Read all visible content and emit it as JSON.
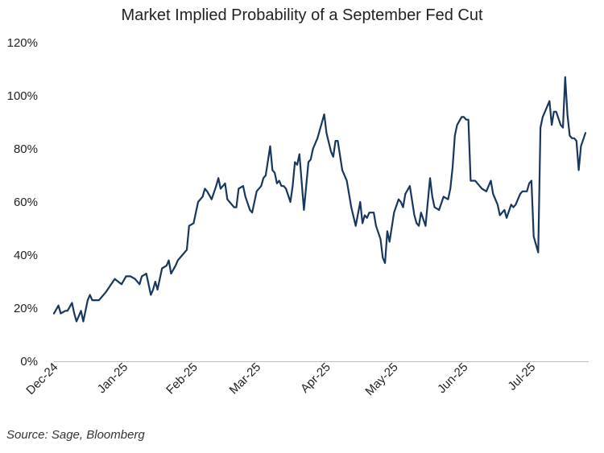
{
  "chart_data": {
    "type": "line",
    "title": "Market Implied Probability of a September Fed Cut",
    "xlabel": "",
    "ylabel": "",
    "ylim": [
      0,
      120
    ],
    "y_ticks": [
      "0%",
      "20%",
      "40%",
      "60%",
      "80%",
      "100%",
      "120%"
    ],
    "x_ticks": [
      "Dec-24",
      "Jan-25",
      "Feb-25",
      "Mar-25",
      "Apr-25",
      "May-25",
      "Jun-25",
      "Jul-25"
    ],
    "x_range": [
      "2024-12-01",
      "2025-07-25"
    ],
    "grid": false,
    "legend": "none",
    "line_color": "#17375e",
    "series": [
      {
        "x": [
          "2024-12-01",
          "2024-12-03",
          "2024-12-04",
          "2024-12-06",
          "2024-12-07",
          "2024-12-09",
          "2024-12-10",
          "2024-12-11",
          "2024-12-13",
          "2024-12-14",
          "2024-12-16",
          "2024-12-17",
          "2024-12-18",
          "2024-12-19",
          "2024-12-21",
          "2024-12-24",
          "2024-12-28",
          "2024-12-31",
          "2025-01-02",
          "2025-01-04",
          "2025-01-06",
          "2025-01-08",
          "2025-01-09",
          "2025-01-11",
          "2025-01-13",
          "2025-01-14",
          "2025-01-15",
          "2025-01-16",
          "2025-01-18",
          "2025-01-20",
          "2025-01-21",
          "2025-01-22",
          "2025-01-24",
          "2025-01-25",
          "2025-01-27",
          "2025-01-29",
          "2025-01-30",
          "2025-02-01",
          "2025-02-03",
          "2025-02-05",
          "2025-02-06",
          "2025-02-07",
          "2025-02-09",
          "2025-02-11",
          "2025-02-12",
          "2025-02-13",
          "2025-02-15",
          "2025-02-16",
          "2025-02-17",
          "2025-02-19",
          "2025-02-20",
          "2025-02-21",
          "2025-02-23",
          "2025-02-24",
          "2025-02-26",
          "2025-02-27",
          "2025-03-01",
          "2025-03-03",
          "2025-03-04",
          "2025-03-05",
          "2025-03-07",
          "2025-03-08",
          "2025-03-09",
          "2025-03-10",
          "2025-03-11",
          "2025-03-12",
          "2025-03-13",
          "2025-03-14",
          "2025-03-16",
          "2025-03-17",
          "2025-03-18",
          "2025-03-19",
          "2025-03-20",
          "2025-03-22",
          "2025-03-24",
          "2025-03-25",
          "2025-03-26",
          "2025-03-28",
          "2025-03-30",
          "2025-03-31",
          "2025-04-01",
          "2025-04-03",
          "2025-04-04",
          "2025-04-05",
          "2025-04-06",
          "2025-04-08",
          "2025-04-10",
          "2025-04-11",
          "2025-04-12",
          "2025-04-14",
          "2025-04-16",
          "2025-04-17",
          "2025-04-18",
          "2025-04-19",
          "2025-04-20",
          "2025-04-22",
          "2025-04-23",
          "2025-04-25",
          "2025-04-26",
          "2025-04-27",
          "2025-04-28",
          "2025-04-29",
          "2025-05-01",
          "2025-05-03",
          "2025-05-04",
          "2025-05-05",
          "2025-05-06",
          "2025-05-08",
          "2025-05-10",
          "2025-05-11",
          "2025-05-12",
          "2025-05-13",
          "2025-05-15",
          "2025-05-17",
          "2025-05-18",
          "2025-05-19",
          "2025-05-21",
          "2025-05-23",
          "2025-05-25",
          "2025-05-26",
          "2025-05-27",
          "2025-05-28",
          "2025-05-29",
          "2025-05-31",
          "2025-06-01",
          "2025-06-02",
          "2025-06-03",
          "2025-06-04",
          "2025-06-06",
          "2025-06-08",
          "2025-06-09",
          "2025-06-11",
          "2025-06-12",
          "2025-06-13",
          "2025-06-14",
          "2025-06-15",
          "2025-06-16",
          "2025-06-17",
          "2025-06-19",
          "2025-06-20",
          "2025-06-22",
          "2025-06-23",
          "2025-06-24",
          "2025-06-26",
          "2025-06-27",
          "2025-06-28",
          "2025-06-29",
          "2025-06-30",
          "2025-07-01",
          "2025-07-02",
          "2025-07-04",
          "2025-07-05",
          "2025-07-06",
          "2025-07-08",
          "2025-07-09",
          "2025-07-10",
          "2025-07-11",
          "2025-07-12",
          "2025-07-14",
          "2025-07-15",
          "2025-07-16",
          "2025-07-17",
          "2025-07-18",
          "2025-07-19",
          "2025-07-20",
          "2025-07-21",
          "2025-07-22",
          "2025-07-23",
          "2025-07-25"
        ],
        "values": [
          18,
          21,
          18,
          19,
          19,
          22,
          18,
          15,
          19,
          15,
          23,
          25,
          23,
          23,
          23,
          26,
          31,
          29,
          32,
          32,
          31,
          29,
          32,
          33,
          25,
          27,
          30,
          27,
          35,
          36,
          38,
          33,
          36,
          38,
          40,
          42,
          51,
          52,
          60,
          62,
          65,
          64,
          61,
          66,
          69,
          65,
          67,
          61,
          60,
          58,
          58,
          65,
          66,
          62,
          57,
          56,
          64,
          66,
          69,
          70,
          81,
          72,
          71,
          67,
          68,
          66,
          66,
          65,
          60,
          66,
          75,
          74,
          78,
          57,
          75,
          76,
          80,
          84,
          90,
          93,
          86,
          79,
          77,
          83,
          83,
          72,
          68,
          63,
          58,
          51,
          60,
          52,
          55,
          54,
          56,
          56,
          51,
          46,
          39,
          37,
          49,
          45,
          56,
          61,
          60,
          58,
          63,
          66,
          55,
          52,
          51,
          56,
          51,
          69,
          62,
          58,
          57,
          62,
          61,
          65,
          73,
          85,
          89,
          92,
          92,
          91,
          91,
          68,
          68,
          66,
          65,
          64,
          66,
          68,
          63,
          61,
          59,
          55,
          57,
          54,
          59,
          58,
          59,
          63,
          64,
          64,
          64,
          67,
          68,
          47,
          41,
          88,
          92,
          96,
          98,
          89,
          94,
          94,
          89,
          88,
          107,
          93,
          85,
          84,
          84,
          83,
          72,
          81,
          86
        ]
      }
    ]
  },
  "source": "Source: Sage, Bloomberg"
}
